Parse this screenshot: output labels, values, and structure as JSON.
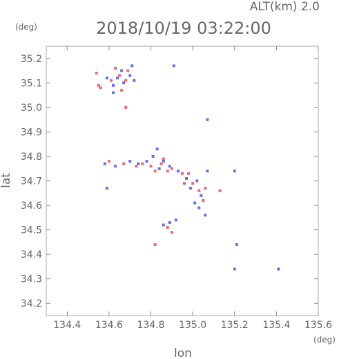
{
  "header": {
    "alt_label": "ALT(km)  2.0",
    "timestamp": "2018/10/19 03:22:00"
  },
  "colors": {
    "frame": "#aaaaaa",
    "tick": "#888888",
    "text": "#666666",
    "red": "#e86a7a",
    "blue": "#6d6de0"
  },
  "chart_data": {
    "type": "scatter",
    "xlabel": "lon",
    "ylabel": "lat",
    "x_unit": "(deg)",
    "y_unit": "(deg)",
    "xlim": [
      134.3,
      135.6
    ],
    "ylim": [
      34.15,
      35.25
    ],
    "x_ticks": [
      "134.4",
      "134.6",
      "134.8",
      "135.0",
      "135.2",
      "135.4",
      "135.6"
    ],
    "y_ticks": [
      "34.2",
      "34.3",
      "34.4",
      "34.5",
      "34.6",
      "34.7",
      "34.8",
      "34.9",
      "35.0",
      "35.1",
      "35.2"
    ],
    "x_tick_values": [
      134.4,
      134.6,
      134.8,
      135.0,
      135.2,
      135.4,
      135.6
    ],
    "y_tick_values": [
      34.2,
      34.3,
      34.4,
      34.5,
      34.6,
      34.7,
      34.8,
      34.9,
      35.0,
      35.1,
      35.2
    ],
    "series": [
      {
        "color": "red",
        "points": [
          [
            134.54,
            35.14
          ],
          [
            134.55,
            35.09
          ],
          [
            134.56,
            35.08
          ],
          [
            134.61,
            35.11
          ],
          [
            134.63,
            35.16
          ],
          [
            134.65,
            35.13
          ],
          [
            134.66,
            35.07
          ],
          [
            134.68,
            35.11
          ],
          [
            134.69,
            35.15
          ],
          [
            134.68,
            35.0
          ],
          [
            134.6,
            34.78
          ],
          [
            134.67,
            34.77
          ],
          [
            134.73,
            34.76
          ],
          [
            134.76,
            34.77
          ],
          [
            134.8,
            34.76
          ],
          [
            134.82,
            34.74
          ],
          [
            134.85,
            34.77
          ],
          [
            134.88,
            34.74
          ],
          [
            134.9,
            34.75
          ],
          [
            134.95,
            34.73
          ],
          [
            134.98,
            34.73
          ],
          [
            135.0,
            34.69
          ],
          [
            135.03,
            34.66
          ],
          [
            135.05,
            34.62
          ],
          [
            135.06,
            34.67
          ],
          [
            135.13,
            34.66
          ],
          [
            134.88,
            34.51
          ],
          [
            134.9,
            34.49
          ],
          [
            134.82,
            34.44
          ],
          [
            135.41,
            34.34
          ],
          [
            134.86,
            34.79
          ],
          [
            134.96,
            34.69
          ]
        ]
      },
      {
        "color": "blue",
        "points": [
          [
            134.59,
            35.12
          ],
          [
            134.62,
            35.09
          ],
          [
            134.64,
            35.12
          ],
          [
            134.66,
            35.15
          ],
          [
            134.67,
            35.1
          ],
          [
            134.7,
            35.13
          ],
          [
            134.71,
            35.17
          ],
          [
            134.72,
            35.11
          ],
          [
            134.62,
            35.06
          ],
          [
            134.91,
            35.17
          ],
          [
            135.07,
            34.95
          ],
          [
            134.58,
            34.77
          ],
          [
            134.63,
            34.76
          ],
          [
            134.7,
            34.78
          ],
          [
            134.74,
            34.77
          ],
          [
            134.78,
            34.78
          ],
          [
            134.81,
            34.8
          ],
          [
            134.84,
            34.75
          ],
          [
            134.86,
            34.78
          ],
          [
            134.89,
            34.76
          ],
          [
            134.93,
            34.74
          ],
          [
            134.97,
            34.71
          ],
          [
            134.99,
            34.67
          ],
          [
            135.02,
            34.7
          ],
          [
            135.04,
            34.64
          ],
          [
            135.07,
            34.74
          ],
          [
            135.01,
            34.61
          ],
          [
            135.03,
            34.59
          ],
          [
            135.06,
            34.56
          ],
          [
            135.2,
            34.74
          ],
          [
            134.59,
            34.67
          ],
          [
            134.86,
            34.52
          ],
          [
            134.89,
            34.53
          ],
          [
            134.92,
            34.54
          ],
          [
            135.2,
            34.34
          ],
          [
            135.41,
            34.34
          ],
          [
            135.21,
            34.44
          ],
          [
            134.83,
            34.83
          ]
        ]
      }
    ]
  }
}
